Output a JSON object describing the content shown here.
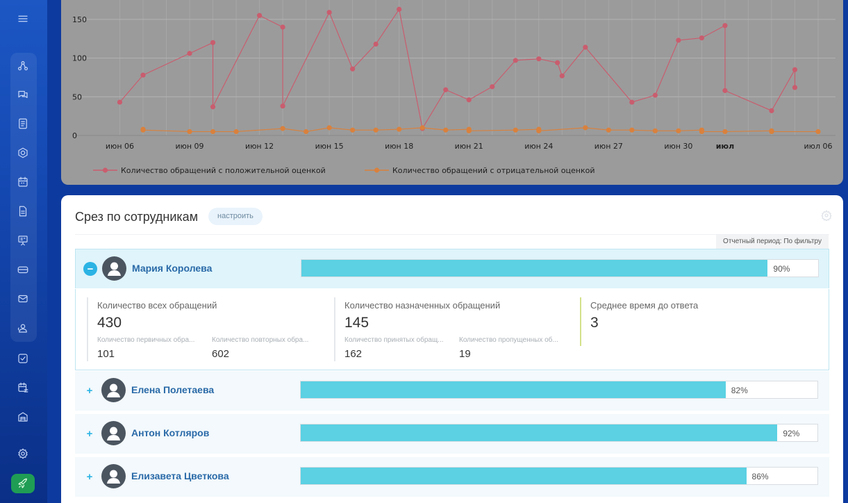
{
  "sidebar": {
    "icons": [
      "menu-icon",
      "pipeline-icon",
      "chat-icon",
      "document-icon",
      "hexagon-icon",
      "calendar-icon",
      "file-icon",
      "presentation-icon",
      "card-icon",
      "mail-icon",
      "users-icon",
      "checkbox-icon",
      "schedule-icon",
      "warehouse-icon",
      "settings-icon",
      "rocket-icon"
    ],
    "colors": {
      "top": "#1c57c4",
      "bottom": "#0a2f86",
      "launch": "#1f9d55"
    }
  },
  "chart_data": {
    "type": "line",
    "ylim": [
      0,
      175
    ],
    "yticks": [
      0,
      50,
      100,
      150
    ],
    "xlim": [
      5.3,
      36
    ],
    "xtick_values": [
      6,
      9,
      12,
      15,
      18,
      21,
      24,
      27,
      30,
      32,
      36
    ],
    "xtick_labels": [
      "июн 06",
      "июн 09",
      "июн 12",
      "июн 15",
      "июн 18",
      "июн 21",
      "июн 24",
      "июн 27",
      "июн 30",
      "июл",
      "июл 06"
    ],
    "xtick_bold": [
      false,
      false,
      false,
      false,
      false,
      false,
      false,
      false,
      false,
      true,
      false
    ],
    "series": [
      {
        "name": "Количество обращений с положительной оценкой",
        "color": "#c95d6e",
        "x": [
          6,
          7,
          9,
          10,
          10,
          12,
          13,
          13,
          15,
          16,
          17,
          18,
          19,
          20,
          21,
          22,
          23,
          24,
          24.8,
          25,
          26,
          28,
          29,
          30,
          31,
          32,
          32,
          34,
          35,
          35
        ],
        "y": [
          43,
          78,
          106,
          120,
          37,
          155,
          140,
          38,
          159,
          86,
          118,
          163,
          9,
          59,
          46,
          63,
          97,
          99,
          94,
          77,
          114,
          43,
          52,
          123,
          126,
          142,
          58,
          32,
          85,
          62
        ]
      },
      {
        "name": "Количество обращений с отрицательной оценкой",
        "color": "#d9813d",
        "x": [
          7,
          7,
          9,
          10,
          11,
          13,
          14,
          15,
          16,
          17,
          18,
          19,
          20,
          21,
          21,
          23,
          24,
          24,
          26,
          27,
          28,
          29,
          30,
          31,
          31,
          32,
          34,
          34,
          36
        ],
        "y": [
          8,
          7,
          5,
          5,
          5,
          9,
          5,
          10,
          7,
          7,
          8,
          10,
          7,
          8,
          6,
          7,
          8,
          6,
          10,
          7,
          7,
          6,
          6,
          7,
          5,
          5,
          6,
          5,
          5
        ]
      }
    ]
  },
  "employees": {
    "title": "Срез по сотрудникам",
    "config_label": "настроить",
    "period": "Отчетный период: По фильтру",
    "rows": [
      {
        "name": "Мария Королева",
        "percent": 90,
        "percent_label": "90%",
        "toggle": "−",
        "expanded": true
      },
      {
        "name": "Елена Полетаева",
        "percent": 82,
        "percent_label": "82%",
        "toggle": "+",
        "expanded": false
      },
      {
        "name": "Антон Котляров",
        "percent": 92,
        "percent_label": "92%",
        "toggle": "+",
        "expanded": false
      },
      {
        "name": "Елизавета Цветкова",
        "percent": 86,
        "percent_label": "86%",
        "toggle": "+",
        "expanded": false
      }
    ],
    "details": {
      "all": {
        "title": "Количество всех обращений",
        "value": "430",
        "sub": [
          {
            "label": "Количество первичных обра...",
            "value": "101"
          },
          {
            "label": "Количество повторных обра...",
            "value": "602"
          }
        ]
      },
      "assigned": {
        "title": "Количество назначенных обращений",
        "value": "145",
        "sub": [
          {
            "label": "Количество принятых обращ...",
            "value": "162"
          },
          {
            "label": "Количество пропущенных об...",
            "value": "19"
          }
        ]
      },
      "response": {
        "title": "Среднее время до ответа",
        "value": "3"
      }
    },
    "bar_color": "#5bd1e3"
  }
}
